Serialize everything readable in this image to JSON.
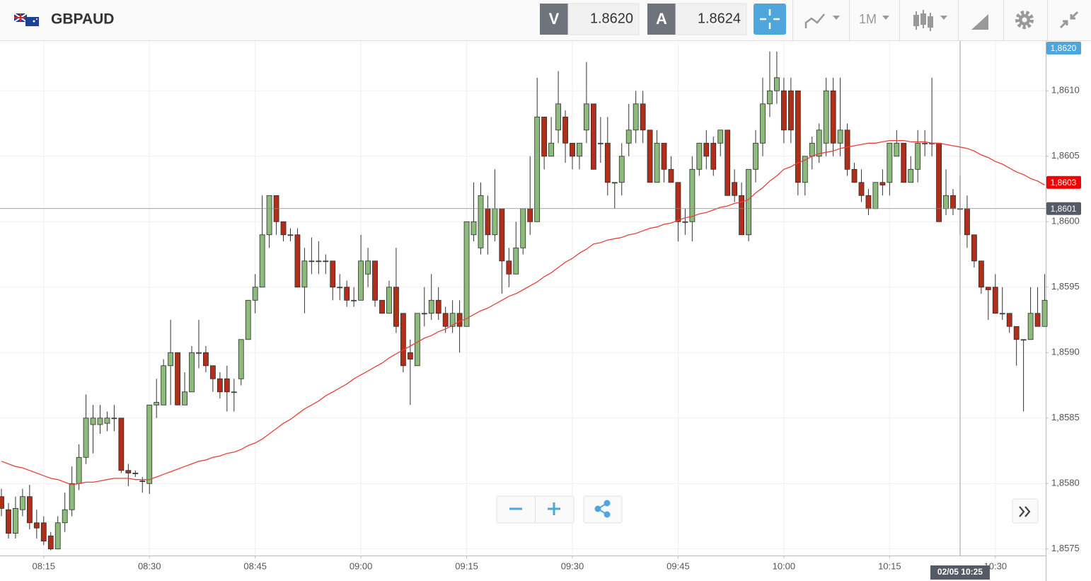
{
  "header": {
    "symbol": "GBPAUD",
    "bid_label": "V",
    "bid": "1.8620",
    "ask_label": "A",
    "ask": "1.8624",
    "timeframe": "1M"
  },
  "chart_data": {
    "type": "candlestick",
    "categories": [
      null,
      null,
      null,
      null,
      null,
      null,
      "08:15",
      null,
      null,
      null,
      null,
      null,
      null,
      null,
      null,
      null,
      null,
      null,
      null,
      null,
      null,
      "08:30",
      null,
      null,
      null,
      null,
      null,
      null,
      null,
      null,
      null,
      null,
      null,
      null,
      null,
      null,
      "08:45",
      null,
      null,
      null,
      null,
      null,
      null,
      null,
      null,
      null,
      null,
      null,
      null,
      null,
      null,
      "09:00",
      null,
      null,
      null,
      null,
      null,
      null,
      null,
      null,
      null,
      null,
      null,
      null,
      null,
      null,
      "09:15",
      null,
      null,
      null,
      null,
      null,
      null,
      null,
      null,
      null,
      null,
      null,
      null,
      null,
      null,
      "09:30",
      null,
      null,
      null,
      null,
      null,
      null,
      null,
      null,
      null,
      null,
      null,
      null,
      null,
      null,
      "09:45",
      null,
      null,
      null,
      null,
      null,
      null,
      null,
      null,
      null,
      null,
      null,
      null,
      null,
      null,
      "10:00",
      null,
      null,
      null,
      null,
      null,
      null,
      null,
      null,
      null,
      null,
      null,
      null,
      null,
      null,
      "10:15",
      null,
      null,
      null,
      null,
      null,
      null,
      null,
      null,
      null,
      null,
      null,
      null,
      null,
      null,
      "10:30",
      null,
      null,
      null,
      null,
      null,
      null,
      null
    ],
    "open": [
      1.8579,
      1.8578,
      1.85762,
      1.8578,
      1.8579,
      1.8577,
      1.8577,
      1.8576,
      1.8575,
      1.8577,
      1.8578,
      1.858,
      1.8582,
      1.85845,
      1.85845,
      1.85846,
      1.8585,
      1.8585,
      1.8581,
      1.85808,
      1.85802,
      1.858,
      1.8586,
      1.8586,
      1.8589,
      1.859,
      1.8586,
      1.8587,
      1.859,
      1.859,
      1.8589,
      1.8588,
      1.8588,
      1.8587,
      1.8588,
      1.8591,
      1.8594,
      1.8595,
      1.8599,
      1.8602,
      1.86,
      1.8599,
      1.8599,
      1.8595,
      1.8597,
      1.8597,
      1.8597,
      1.8597,
      1.8595,
      1.8595,
      1.8594,
      1.8594,
      1.8596,
      1.8597,
      1.8594,
      1.8593,
      1.8595,
      1.8593,
      1.859,
      1.8589,
      1.8593,
      1.8593,
      1.8594,
      1.8593,
      1.8592,
      1.8593,
      1.8592,
      1.8599,
      1.8598,
      1.8601,
      1.8599,
      1.8601,
      1.8597,
      1.8596,
      1.8598,
      1.8601,
      1.86,
      1.8608,
      1.8605,
      1.8607,
      1.8608,
      1.8606,
      1.8605,
      1.8607,
      1.8609,
      1.8606,
      1.8606,
      1.8603,
      1.8603,
      1.8606,
      1.8607,
      1.8609,
      1.8607,
      1.8603,
      1.8606,
      1.8604,
      1.8603,
      1.86,
      1.86,
      1.8604,
      1.8606,
      1.8606,
      1.8606,
      1.8607,
      1.8603,
      1.8602,
      1.8599,
      1.8604,
      1.8606,
      1.8609,
      1.861,
      1.861,
      1.861,
      1.861,
      1.8603,
      1.8605,
      1.8605,
      1.8606,
      1.861,
      1.8606,
      1.8607,
      1.8604,
      1.8603,
      1.8602,
      1.8601,
      1.8603,
      1.8603,
      1.8605,
      1.8606,
      1.8603,
      1.8604,
      1.8606,
      1.8606,
      1.8606,
      1.8601,
      1.8602,
      1.8601,
      1.8601,
      1.8599,
      1.8597,
      1.8595,
      1.8595,
      1.8593,
      1.8593,
      1.8592,
      1.8591,
      1.8591,
      1.8593,
      1.8592
    ],
    "high": [
      1.85796,
      1.85785,
      1.8579,
      1.85796,
      1.85799,
      1.8578,
      1.85775,
      1.85763,
      1.85775,
      1.85793,
      1.85813,
      1.8583,
      1.85868,
      1.8586,
      1.8586,
      1.85855,
      1.8586,
      1.8585,
      1.85815,
      1.8581,
      1.85805,
      1.8586,
      1.8588,
      1.85895,
      1.85925,
      1.859,
      1.85885,
      1.85905,
      1.85925,
      1.85905,
      1.8589,
      1.85885,
      1.8589,
      1.8588,
      1.8591,
      1.8594,
      1.8596,
      1.8602,
      1.8602,
      1.8602,
      1.86,
      1.85995,
      1.85995,
      1.8598,
      1.85988,
      1.85985,
      1.85975,
      1.8597,
      1.8596,
      1.85955,
      1.8595,
      1.8599,
      1.8598,
      1.8597,
      1.8594,
      1.85955,
      1.8598,
      1.8593,
      1.8591,
      1.8593,
      1.8595,
      1.8596,
      1.8595,
      1.85935,
      1.8594,
      1.8594,
      1.86,
      1.8603,
      1.8603,
      1.8602,
      1.8604,
      1.8601,
      1.8598,
      1.86,
      1.8601,
      1.8605,
      1.8611,
      1.8608,
      1.8608,
      1.86115,
      1.86085,
      1.8606,
      1.8606,
      1.86122,
      1.8609,
      1.8608,
      1.8608,
      1.8603,
      1.8606,
      1.8609,
      1.861,
      1.861,
      1.8607,
      1.8607,
      1.8606,
      1.8605,
      1.8603,
      1.8601,
      1.8605,
      1.8606,
      1.8607,
      1.86065,
      1.8607,
      1.8607,
      1.8604,
      1.8603,
      1.8604,
      1.8607,
      1.8611,
      1.8613,
      1.8613,
      1.8611,
      1.8611,
      1.861,
      1.8605,
      1.86065,
      1.86075,
      1.8611,
      1.8611,
      1.8611,
      1.86075,
      1.86045,
      1.8604,
      1.86025,
      1.8603,
      1.8604,
      1.8606,
      1.8607,
      1.8606,
      1.8605,
      1.8607,
      1.8607,
      1.8611,
      1.8606,
      1.8604,
      1.86025,
      1.86035,
      1.8602,
      1.8599,
      1.8597,
      1.8595,
      1.8596,
      1.8595,
      1.8593,
      1.8592,
      1.8591,
      1.8595,
      1.8595,
      1.8596
    ],
    "low": [
      1.85775,
      1.85758,
      1.85758,
      1.85775,
      1.85765,
      1.85758,
      1.85753,
      1.85749,
      1.8575,
      1.85763,
      1.85775,
      1.85795,
      1.85815,
      1.85823,
      1.85838,
      1.8584,
      1.8584,
      1.85808,
      1.85798,
      1.85805,
      1.85793,
      1.85792,
      1.8585,
      1.8586,
      1.8586,
      1.8586,
      1.8586,
      1.8587,
      1.85888,
      1.85885,
      1.8587,
      1.85865,
      1.85855,
      1.85855,
      1.85875,
      1.8591,
      1.8593,
      1.8595,
      1.8598,
      1.8599,
      1.85985,
      1.85985,
      1.8595,
      1.8593,
      1.8596,
      1.8596,
      1.8596,
      1.8594,
      1.8594,
      1.85935,
      1.85935,
      1.8594,
      1.8595,
      1.85935,
      1.8593,
      1.8593,
      1.85915,
      1.85885,
      1.8586,
      1.8589,
      1.8592,
      1.85925,
      1.85925,
      1.85915,
      1.85915,
      1.859,
      1.8592,
      1.85985,
      1.85975,
      1.85975,
      1.85985,
      1.85945,
      1.8595,
      1.8596,
      1.85975,
      1.8599,
      1.86,
      1.8604,
      1.8605,
      1.8606,
      1.86045,
      1.8604,
      1.8604,
      1.8606,
      1.8604,
      1.86045,
      1.8602,
      1.8601,
      1.8602,
      1.8605,
      1.8606,
      1.8606,
      1.8603,
      1.8603,
      1.8603,
      1.8603,
      1.85985,
      1.8599,
      1.85985,
      1.86035,
      1.8604,
      1.86035,
      1.8605,
      1.8602,
      1.86015,
      1.8599,
      1.85985,
      1.8603,
      1.8605,
      1.8608,
      1.8609,
      1.8606,
      1.8606,
      1.8602,
      1.8602,
      1.8604,
      1.86045,
      1.8605,
      1.8605,
      1.8605,
      1.86035,
      1.8603,
      1.86015,
      1.86005,
      1.8601,
      1.8602,
      1.8602,
      1.8605,
      1.8603,
      1.8603,
      1.8603,
      1.8605,
      1.8605,
      1.86,
      1.86005,
      1.86005,
      1.8599,
      1.8598,
      1.85965,
      1.85945,
      1.85925,
      1.8593,
      1.85925,
      1.85915,
      1.8589,
      1.85855,
      1.8591,
      1.8592,
      1.8592
    ],
    "close": [
      1.85781,
      1.85762,
      1.85781,
      1.8579,
      1.8577,
      1.85766,
      1.85756,
      1.8575,
      1.8577,
      1.8578,
      1.858,
      1.8582,
      1.8585,
      1.8585,
      1.8585,
      1.8585,
      1.8585,
      1.8581,
      1.85808,
      1.85808,
      1.85802,
      1.8586,
      1.85862,
      1.8589,
      1.859,
      1.8586,
      1.8587,
      1.859,
      1.859,
      1.8589,
      1.8588,
      1.8587,
      1.8587,
      1.8587,
      1.8591,
      1.8594,
      1.8595,
      1.8599,
      1.8602,
      1.86,
      1.8599,
      1.8599,
      1.8595,
      1.8597,
      1.8597,
      1.8597,
      1.8597,
      1.8595,
      1.8595,
      1.8594,
      1.8594,
      1.8597,
      1.8597,
      1.8594,
      1.8593,
      1.8595,
      1.8592,
      1.8589,
      1.85895,
      1.8593,
      1.8593,
      1.8594,
      1.8593,
      1.8592,
      1.8593,
      1.8592,
      1.86,
      1.86,
      1.8602,
      1.8599,
      1.8601,
      1.8597,
      1.8596,
      1.8598,
      1.8601,
      1.86,
      1.8608,
      1.8605,
      1.8606,
      1.8609,
      1.8606,
      1.8605,
      1.8606,
      1.8609,
      1.8604,
      1.8606,
      1.8603,
      1.8603,
      1.8605,
      1.8607,
      1.8609,
      1.8607,
      1.8603,
      1.8606,
      1.8604,
      1.8603,
      1.86,
      1.86,
      1.8604,
      1.8606,
      1.8605,
      1.8604,
      1.8607,
      1.8602,
      1.8602,
      1.8599,
      1.8604,
      1.8606,
      1.8609,
      1.861,
      1.8611,
      1.8607,
      1.8607,
      1.8603,
      1.8605,
      1.8606,
      1.8607,
      1.861,
      1.8606,
      1.8607,
      1.8604,
      1.8603,
      1.8602,
      1.8601,
      1.8603,
      1.86028,
      1.8606,
      1.8606,
      1.8603,
      1.8604,
      1.8606,
      1.8606,
      1.8606,
      1.86,
      1.8602,
      1.8601,
      1.8601,
      1.8599,
      1.8597,
      1.8595,
      1.85948,
      1.8593,
      1.8593,
      1.8592,
      1.8591,
      1.8591,
      1.8593,
      1.8592,
      1.8594
    ],
    "up_color": "#8dbb7c",
    "down_color": "#b12f1a",
    "ma": {
      "color": "#e8413a",
      "values": [
        1.85817,
        1.85815,
        1.85813,
        1.85812,
        1.8581,
        1.85808,
        1.85806,
        1.85804,
        1.85803,
        1.85801,
        1.85799,
        1.858,
        1.85801,
        1.85801,
        1.85802,
        1.85803,
        1.85804,
        1.85804,
        1.85804,
        1.85803,
        1.85803,
        1.85803,
        1.85805,
        1.85807,
        1.85809,
        1.85811,
        1.85813,
        1.85815,
        1.85817,
        1.85818,
        1.8582,
        1.85821,
        1.85823,
        1.85824,
        1.85826,
        1.85829,
        1.85831,
        1.85834,
        1.85838,
        1.85842,
        1.85846,
        1.85849,
        1.85853,
        1.85857,
        1.8586,
        1.85863,
        1.85867,
        1.8587,
        1.85873,
        1.85876,
        1.8588,
        1.85883,
        1.85886,
        1.85889,
        1.85892,
        1.85896,
        1.85899,
        1.85902,
        1.85905,
        1.85908,
        1.85911,
        1.85913,
        1.85916,
        1.85918,
        1.85921,
        1.85924,
        1.85926,
        1.85929,
        1.85932,
        1.85934,
        1.85937,
        1.8594,
        1.85943,
        1.85945,
        1.85948,
        1.85951,
        1.85954,
        1.85958,
        1.85961,
        1.85965,
        1.85969,
        1.85972,
        1.85976,
        1.85979,
        1.85983,
        1.85984,
        1.85986,
        1.85987,
        1.85988,
        1.8599,
        1.85991,
        1.85993,
        1.85995,
        1.85996,
        1.85998,
        1.85999,
        1.86001,
        1.86003,
        1.86004,
        1.86006,
        1.86007,
        1.86009,
        1.86011,
        1.86012,
        1.86014,
        1.86015,
        1.86017,
        1.86022,
        1.86026,
        1.86031,
        1.86035,
        1.8604,
        1.86042,
        1.86045,
        1.86047,
        1.8605,
        1.86052,
        1.86053,
        1.86054,
        1.86056,
        1.86057,
        1.86058,
        1.86059,
        1.8606,
        1.8606,
        1.86061,
        1.86062,
        1.86062,
        1.86062,
        1.86061,
        1.86061,
        1.86061,
        1.8606,
        1.8606,
        1.86059,
        1.86058,
        1.86057,
        1.86056,
        1.86054,
        1.86051,
        1.86049,
        1.86046,
        1.86044,
        1.86041,
        1.86038,
        1.86036,
        1.86033,
        1.86031,
        1.86028
      ]
    },
    "ylim": [
      1.85745,
      1.86138
    ],
    "yticks": [
      {
        "value": 1.8575,
        "label": "1,8575"
      },
      {
        "value": 1.858,
        "label": "1,8580"
      },
      {
        "value": 1.8585,
        "label": "1,8585"
      },
      {
        "value": 1.859,
        "label": "1,8590"
      },
      {
        "value": 1.8595,
        "label": "1,8595"
      },
      {
        "value": 1.86,
        "label": "1,8600"
      },
      {
        "value": 1.8605,
        "label": "1,8605"
      },
      {
        "value": 1.861,
        "label": "1,8610"
      }
    ],
    "grid": true,
    "price_markers": [
      {
        "value": 1.862,
        "label": "1,8620",
        "color": "#4ea6dc"
      },
      {
        "value": 1.8603,
        "label": "1,8603",
        "color": "#f00000"
      },
      {
        "value": 1.8601,
        "label": "1,8601",
        "color": "#555b66"
      }
    ],
    "crosshair_label": "02/05 10:25"
  }
}
